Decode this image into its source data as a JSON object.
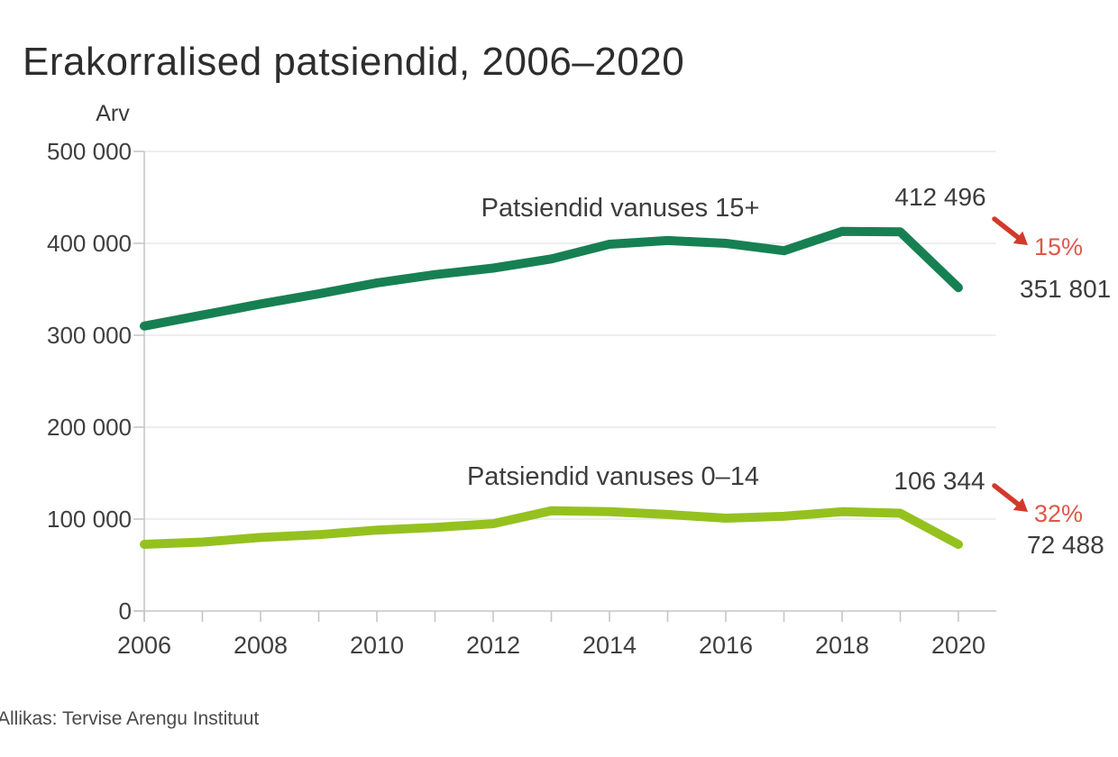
{
  "title": "Erakorralised patsiendid, 2006–2020",
  "y_axis_title": "Arv",
  "source_note": "Allikas: Tervise Arengu Instituut",
  "colors": {
    "series_15plus": "#178052",
    "series_0to14": "#95c11f",
    "decline_arrow": "#d2392b",
    "decline_pct_text": "#e0574a",
    "grid_line": "#e9e9e9",
    "axis_line": "#c6c6c6",
    "title_text": "#2d2d2d",
    "label_text": "#3d3d3d"
  },
  "chart_data": {
    "type": "line",
    "title": "Erakorralised patsiendid, 2006–2020",
    "xlabel": "",
    "ylabel": "Arv",
    "x": [
      2006,
      2007,
      2008,
      2009,
      2010,
      2011,
      2012,
      2013,
      2014,
      2015,
      2016,
      2017,
      2018,
      2019,
      2020
    ],
    "x_tick_labels": [
      "2006",
      "2008",
      "2010",
      "2012",
      "2014",
      "2016",
      "2018",
      "2020"
    ],
    "x_tick_years": [
      2006,
      2008,
      2010,
      2012,
      2014,
      2016,
      2018,
      2020
    ],
    "y_ticks": [
      0,
      100000,
      200000,
      300000,
      400000,
      500000
    ],
    "y_tick_labels": [
      "0",
      "100 000",
      "200 000",
      "300 000",
      "400 000",
      "500 000"
    ],
    "ylim": [
      0,
      500000
    ],
    "grid": "horizontal",
    "legend_position": "inline-labels",
    "series": [
      {
        "id": "age-15plus",
        "name": "Patsiendid vanuses 15+",
        "color": "#178052",
        "values": [
          310000,
          322000,
          334000,
          345000,
          357000,
          366000,
          373000,
          383000,
          399000,
          403000,
          400000,
          392000,
          413000,
          412496,
          351801
        ],
        "annotations": {
          "peak_value_label": "412 496",
          "end_value_label": "351 801",
          "decline_pct_label": "15%"
        }
      },
      {
        "id": "age-0-14",
        "name": "Patsiendid vanuses 0–14",
        "color": "#95c11f",
        "values": [
          72500,
          75000,
          80000,
          83000,
          88000,
          91000,
          95000,
          109000,
          108000,
          105000,
          101000,
          103000,
          108000,
          106344,
          72488
        ],
        "annotations": {
          "peak_value_label": "106 344",
          "end_value_label": "72 488",
          "decline_pct_label": "32%"
        }
      }
    ]
  }
}
